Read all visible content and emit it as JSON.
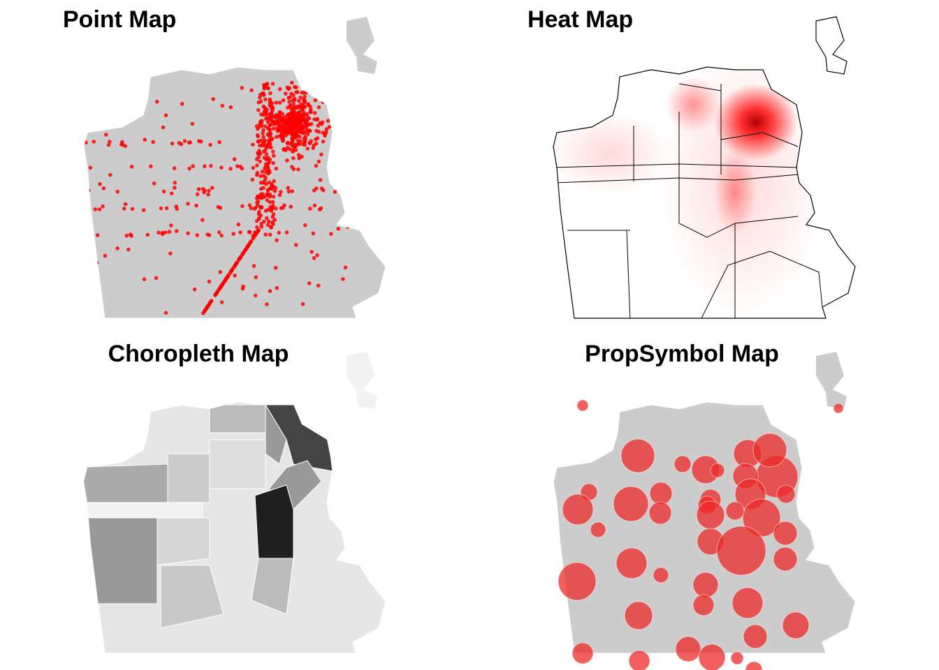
{
  "panels": [
    {
      "title": "Point Map"
    },
    {
      "title": "Heat Map"
    },
    {
      "title": "Choropleth Map"
    },
    {
      "title": "PropSymbol Map"
    }
  ]
}
